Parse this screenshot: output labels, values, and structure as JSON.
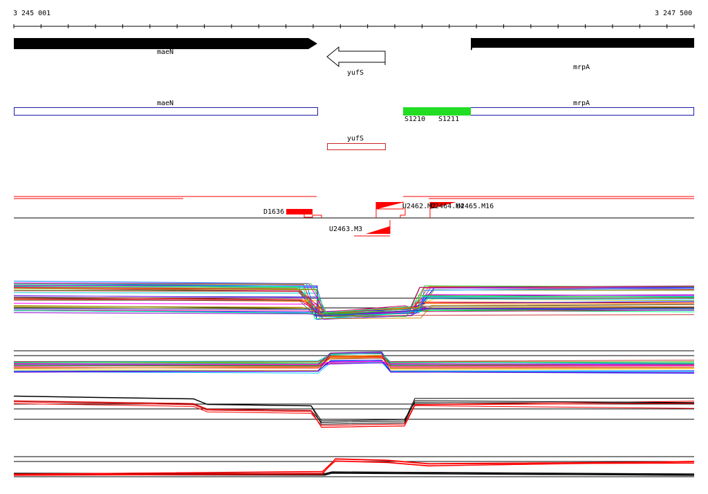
{
  "axis": {
    "start_label": "3 245 001",
    "end_label": "3 247 500"
  },
  "genes_top": {
    "left": "maeN",
    "middle": "yufS",
    "right": "mrpA"
  },
  "genes_annotation": {
    "left": "maeN",
    "right": "mrpA",
    "middle": "yufS"
  },
  "segments": {
    "s1": "S1210",
    "s2": "S1211"
  },
  "features": {
    "d": "D1636",
    "u3": "U2463.M3",
    "u2": "U2462.M2",
    "u4": "U2464.M4",
    "u5": "U2465.M16"
  },
  "colors": {
    "gene_fill": "#000000",
    "annot_box": "#1a1aa6",
    "yufs_box": "#cc2222",
    "segment_green": "#22dd22",
    "feature_red": "#ff0000"
  }
}
